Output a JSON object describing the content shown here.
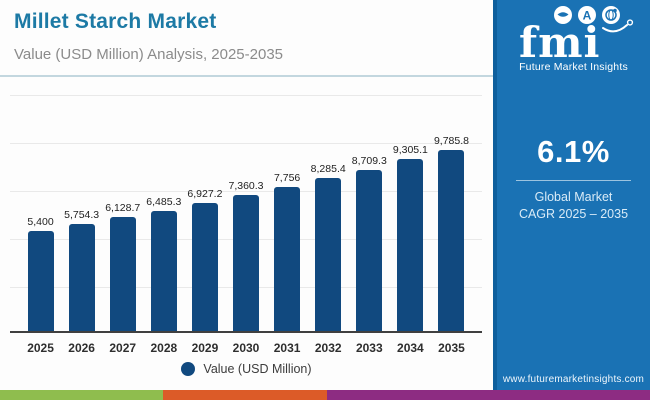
{
  "header": {
    "title": "Millet Starch Market",
    "subtitle": "Value (USD Million) Analysis, 2025-2035"
  },
  "chart_data": {
    "type": "bar",
    "title": "Millet Starch Market",
    "subtitle": "Value (USD Million) Analysis, 2025-2035",
    "categories": [
      "2025",
      "2026",
      "2027",
      "2028",
      "2029",
      "2030",
      "2031",
      "2032",
      "2033",
      "2034",
      "2035"
    ],
    "values": [
      5400,
      5754.3,
      6128.7,
      6485.3,
      6927.2,
      7360.3,
      7756,
      8285.4,
      8709.3,
      9305.1,
      9785.8
    ],
    "value_labels": [
      "5,400",
      "5,754.3",
      "6,128.7",
      "6,485.3",
      "6,927.2",
      "7,360.3",
      "7,756",
      "8,285.4",
      "8,709.3",
      "9,305.1",
      "9,785.8"
    ],
    "xlabel": "",
    "ylabel": "",
    "ylim": [
      0,
      12850
    ],
    "grid": true,
    "legend": [
      "Value (USD Million)"
    ],
    "legend_position": "bottom",
    "bar_color": "#11497f"
  },
  "legend": {
    "label": "Value (USD Million)",
    "marker_color": "#11497f"
  },
  "sidebar": {
    "logo": {
      "text": "fmi",
      "tagline": "Future Market Insights"
    },
    "cagr_value": "6.1%",
    "cagr_label_line1": "Global Market",
    "cagr_label_line2": "CAGR 2025 – 2035",
    "website": "www.futuremarketinsights.com",
    "background": "#1a72b4"
  },
  "footer_stripe": {
    "green": "#8fbd4e",
    "orange": "#dc5b28",
    "purple": "#8d2c82"
  }
}
